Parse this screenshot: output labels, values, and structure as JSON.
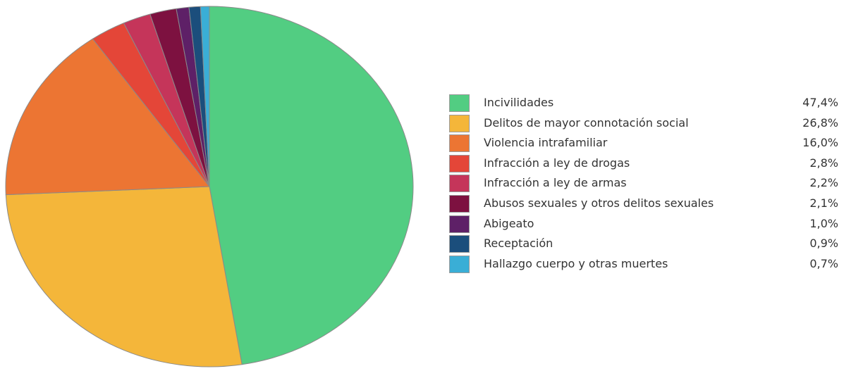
{
  "chart_data": {
    "type": "pie",
    "title": "",
    "legend_position": "right",
    "slices": [
      {
        "label": "Incivilidades",
        "value": 47.4,
        "display": "47,4%",
        "color": "#52cd82"
      },
      {
        "label": "Delitos de mayor connotación social",
        "value": 26.8,
        "display": "26,8%",
        "color": "#f4b63a"
      },
      {
        "label": "Violencia intrafamiliar",
        "value": 16.0,
        "display": "16,0%",
        "color": "#ec7533"
      },
      {
        "label": "Infracción a ley de drogas",
        "value": 2.8,
        "display": "2,8%",
        "color": "#e44638"
      },
      {
        "label": "Infracción a ley de armas",
        "value": 2.2,
        "display": "2,2%",
        "color": "#c5355a"
      },
      {
        "label": "Abusos sexuales y otros delitos sexuales",
        "value": 2.1,
        "display": "2,1%",
        "color": "#7d1140"
      },
      {
        "label": "Abigeato",
        "value": 1.0,
        "display": "1,0%",
        "color": "#5e2067"
      },
      {
        "label": "Receptación",
        "value": 0.9,
        "display": "0,9%",
        "color": "#1b4e7c"
      },
      {
        "label": "Hallazgo cuerpo y otras muertes",
        "value": 0.7,
        "display": "0,7%",
        "color": "#3aaed6"
      }
    ]
  }
}
